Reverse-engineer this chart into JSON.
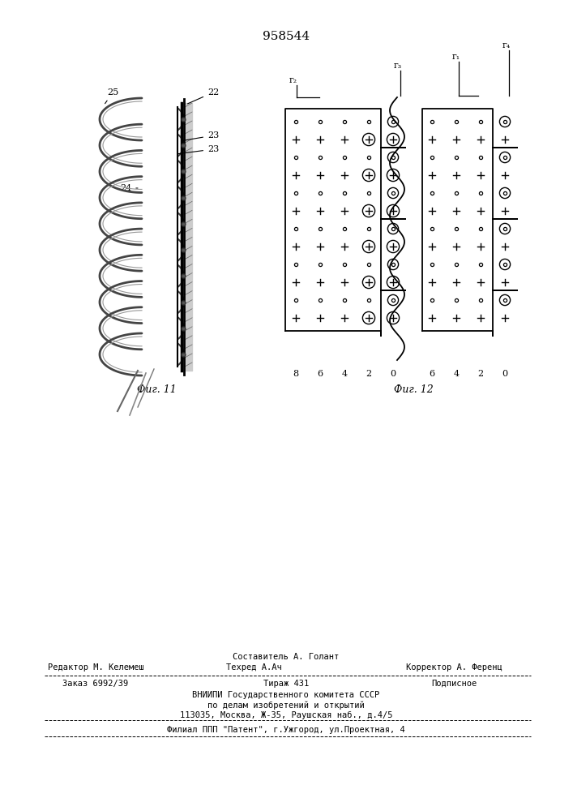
{
  "title": "958544",
  "fig11_label": "Фиг. 11",
  "fig12_label": "Фиг. 12",
  "bottom_sestavitel": "Составитель А. Голант",
  "bottom_redaktor": "Редактор М. Келемеш",
  "bottom_tehred": "Техред А.Ач",
  "bottom_korrektor": "Корректор А. Ференц",
  "bottom_zakaz": "Заказ 6992/39",
  "bottom_tirazh": "Тираж 431",
  "bottom_podpisnoe": "Подписное",
  "bottom_vniip1": "ВНИИПИ Государственного комитета СССР",
  "bottom_vniip2": "по делам изобретений и открытий",
  "bottom_addr": "113035, Москва, Ж-35, Раушская наб., д.4/5",
  "bottom_filial": "Филиал ППП \"Патент\", г.Ужгород, ул.Проектная, 4"
}
